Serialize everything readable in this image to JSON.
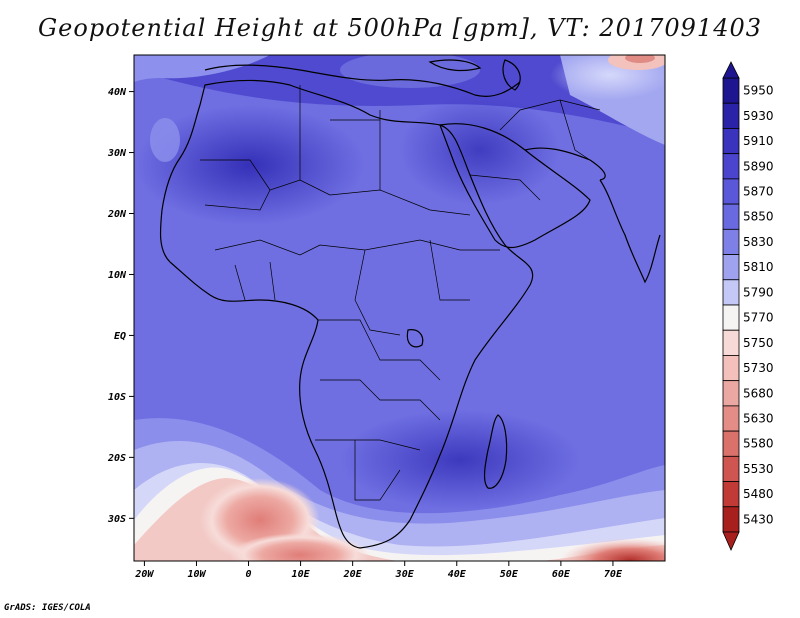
{
  "title": "Geopotential Height at 500hPa [gpm], VT: 2017091403",
  "credit": "GrADS: IGES/COLA",
  "map": {
    "lon_range": [
      -22,
      80
    ],
    "lat_range": [
      -37,
      46
    ],
    "x_ticks": [
      "20W",
      "10W",
      "0",
      "10E",
      "20E",
      "30E",
      "40E",
      "50E",
      "60E",
      "70E"
    ],
    "x_tick_values": [
      -20,
      -10,
      0,
      10,
      20,
      30,
      40,
      50,
      60,
      70
    ],
    "y_ticks": [
      "40N",
      "30N",
      "20N",
      "10N",
      "EQ",
      "10S",
      "20S",
      "30S"
    ],
    "y_tick_values": [
      40,
      30,
      20,
      10,
      0,
      -10,
      -20,
      -30
    ]
  },
  "colorbar": {
    "levels": [
      "5950",
      "5930",
      "5910",
      "5890",
      "5870",
      "5850",
      "5830",
      "5810",
      "5790",
      "5770",
      "5750",
      "5730",
      "5680",
      "5630",
      "5580",
      "5530",
      "5480",
      "5430"
    ],
    "colors": [
      "#1e1690",
      "#2a23a8",
      "#3a33be",
      "#4a45cc",
      "#5a58d8",
      "#6a6ae0",
      "#7e80e8",
      "#9ea2ef",
      "#c4c8f6",
      "#f6f3f3",
      "#f7d9d7",
      "#f3c0bc",
      "#eba7a1",
      "#e38d86",
      "#da716a",
      "#cf5550",
      "#c13a36",
      "#a8201e"
    ]
  }
}
